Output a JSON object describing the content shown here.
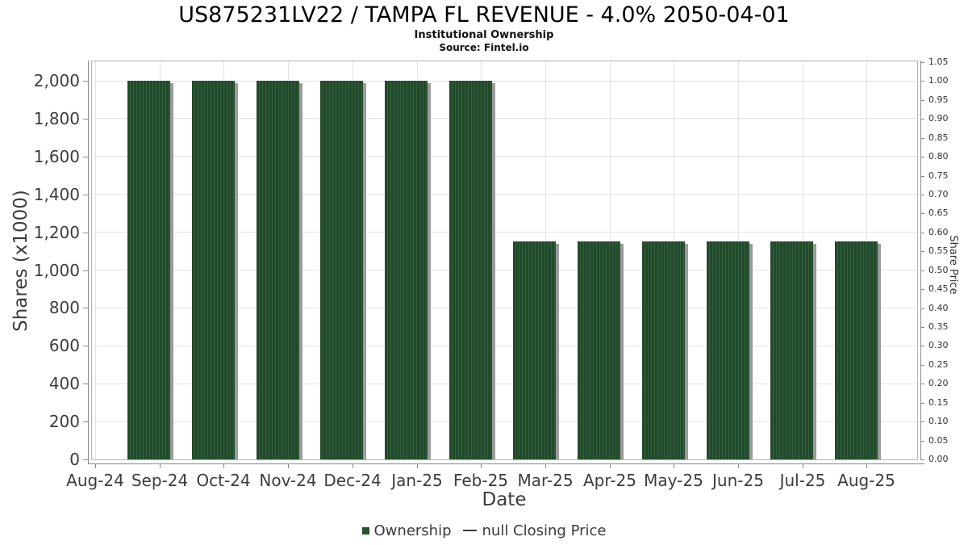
{
  "chart_data": {
    "type": "bar",
    "title": "US875231LV22 / TAMPA FL REVENUE - 4.0% 2050-04-01",
    "subtitle": "Institutional Ownership",
    "source": "Source: Fintel.io",
    "xlabel": "Date",
    "ylabel_left": "Shares (x1000)",
    "ylabel_right": "Share Price",
    "x_tick_labels": [
      "Aug-24",
      "Sep-24",
      "Oct-24",
      "Nov-24",
      "Dec-24",
      "Jan-25",
      "Feb-25",
      "Mar-25",
      "Apr-25",
      "May-25",
      "Jun-25",
      "Jul-25",
      "Aug-25"
    ],
    "left_axis": {
      "tick_labels": [
        "0",
        "200",
        "400",
        "600",
        "800",
        "1,000",
        "1,200",
        "1,400",
        "1,600",
        "1,800",
        "2,000"
      ],
      "tick_values": [
        0,
        200,
        400,
        600,
        800,
        1000,
        1200,
        1400,
        1600,
        1800,
        2000
      ],
      "range": [
        0,
        2100
      ]
    },
    "right_axis": {
      "tick_labels": [
        "0.00",
        "0.05",
        "0.10",
        "0.15",
        "0.20",
        "0.25",
        "0.30",
        "0.35",
        "0.40",
        "0.45",
        "0.50",
        "0.55",
        "0.60",
        "0.65",
        "0.70",
        "0.75",
        "0.80",
        "0.85",
        "0.90",
        "0.95",
        "1.00",
        "1.05"
      ],
      "tick_values": [
        0,
        0.05,
        0.1,
        0.15,
        0.2,
        0.25,
        0.3,
        0.35,
        0.4,
        0.45,
        0.5,
        0.55,
        0.6,
        0.65,
        0.7,
        0.75,
        0.8,
        0.85,
        0.9,
        0.95,
        1.0,
        1.05
      ],
      "range": [
        0,
        1.05
      ]
    },
    "grid": true,
    "legend_position": "bottom",
    "series": [
      {
        "name": "Ownership",
        "type": "bar",
        "color": "#214a2a",
        "stripe_color": "#35603f",
        "categories": [
          "Sep-24",
          "Oct-24",
          "Nov-24",
          "Dec-24",
          "Jan-25",
          "Feb-25",
          "Mar-25",
          "Apr-25",
          "May-25",
          "Jun-25",
          "Jul-25",
          "Aug-25"
        ],
        "values": [
          2000,
          2000,
          2000,
          2000,
          2000,
          2000,
          1150,
          1150,
          1150,
          1150,
          1150,
          1150
        ]
      },
      {
        "name": "null Closing Price",
        "type": "line",
        "color": "#3a3a3a",
        "values": []
      }
    ],
    "legend": [
      {
        "label": "Ownership",
        "marker": "square",
        "color": "#24502e"
      },
      {
        "label": "null Closing Price",
        "marker": "line",
        "color": "#3a3a3a"
      }
    ]
  }
}
